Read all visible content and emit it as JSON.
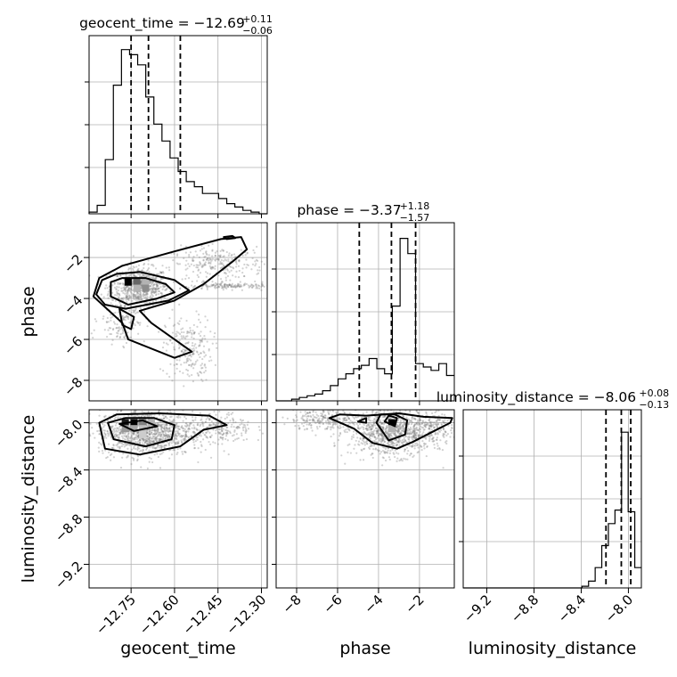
{
  "chart_data": {
    "type": "corner",
    "parameters": [
      "geocent_time",
      "phase",
      "luminosity_distance"
    ],
    "ranges": {
      "geocent_time": [
        -12.895,
        -12.28
      ],
      "phase": [
        -9.0,
        -0.3
      ],
      "luminosity_distance": [
        -9.4,
        -7.89
      ]
    },
    "ticks": {
      "geocent_time": [
        -12.75,
        -12.6,
        -12.45,
        -12.3
      ],
      "phase": [
        -8,
        -6,
        -4,
        -2
      ],
      "luminosity_distance": [
        -9.2,
        -8.8,
        -8.4,
        -8.0
      ]
    },
    "tick_labels": {
      "geocent_time": [
        "−12.75",
        "−12.60",
        "−12.45",
        "−12.30"
      ],
      "phase": [
        "−8",
        "−6",
        "−4",
        "−2"
      ],
      "luminosity_distance": [
        "−9.2",
        "−8.8",
        "−8.4",
        "−8.0"
      ]
    },
    "axis_labels": {
      "geocent_time": "geocent_time",
      "phase": "phase",
      "luminosity_distance": "luminosity_distance"
    },
    "titles": [
      {
        "param": "geocent_time",
        "text": "geocent_time = −12.69",
        "upper": "+0.11",
        "lower": "−0.06"
      },
      {
        "param": "phase",
        "text": "phase = −3.37",
        "upper": "+1.18",
        "lower": "−1.57"
      },
      {
        "param": "luminosity_distance",
        "text": "luminosity_distance = −8.06",
        "upper": "+0.08",
        "lower": "−0.13"
      }
    ],
    "quantiles": {
      "geocent_time": [
        -12.75,
        -12.69,
        -12.58
      ],
      "phase": [
        -4.94,
        -3.37,
        -2.19
      ],
      "luminosity_distance": [
        -8.19,
        -8.06,
        -7.98
      ]
    },
    "histograms": {
      "geocent_time": {
        "edges_range": [
          -12.895,
          -12.28
        ],
        "counts": [
          0.01,
          0.05,
          0.32,
          0.76,
          0.97,
          0.94,
          0.88,
          0.69,
          0.53,
          0.43,
          0.33,
          0.25,
          0.19,
          0.16,
          0.12,
          0.12,
          0.09,
          0.06,
          0.04,
          0.02,
          0.01,
          0.0
        ]
      },
      "phase": {
        "edges_range": [
          -9.0,
          -0.3
        ],
        "counts": [
          0.0,
          0.0,
          0.01,
          0.02,
          0.03,
          0.04,
          0.06,
          0.09,
          0.13,
          0.16,
          0.19,
          0.21,
          0.25,
          0.19,
          0.16,
          0.56,
          0.96,
          0.87,
          0.22,
          0.2,
          0.18,
          0.22,
          0.15
        ]
      },
      "luminosity_distance": {
        "edges_range": [
          -9.4,
          -7.89
        ],
        "counts": [
          0.0,
          0.0,
          0.0,
          0.0,
          0.0,
          0.0,
          0.0,
          0.0,
          0.0,
          0.0,
          0.0,
          0.0,
          0.0,
          0.0,
          0.0,
          0.0,
          0.0,
          0.0,
          0.01,
          0.04,
          0.12,
          0.25,
          0.38,
          0.46,
          0.92,
          0.45,
          0.12
        ]
      }
    },
    "contours_2d": {
      "geocent_time__phase": [
        [
          [
            -12.82,
            -3.2
          ],
          [
            -12.82,
            -3.9
          ],
          [
            -12.76,
            -4.3
          ],
          [
            -12.66,
            -4.0
          ],
          [
            -12.6,
            -3.7
          ],
          [
            -12.63,
            -3.3
          ],
          [
            -12.7,
            -3.0
          ],
          [
            -12.78,
            -3.0
          ]
        ],
        [
          [
            -12.85,
            -3.1
          ],
          [
            -12.87,
            -3.8
          ],
          [
            -12.84,
            -4.3
          ],
          [
            -12.77,
            -4.5
          ],
          [
            -12.62,
            -4.1
          ],
          [
            -12.55,
            -3.6
          ],
          [
            -12.6,
            -3.1
          ],
          [
            -12.72,
            -2.7
          ],
          [
            -12.8,
            -2.8
          ]
        ],
        [
          [
            -12.86,
            -3.0
          ],
          [
            -12.88,
            -3.9
          ],
          [
            -12.78,
            -5.2
          ],
          [
            -12.76,
            -6.0
          ],
          [
            -12.6,
            -6.9
          ],
          [
            -12.54,
            -6.6
          ],
          [
            -12.68,
            -5.2
          ],
          [
            -12.72,
            -4.6
          ],
          [
            -12.6,
            -4.1
          ],
          [
            -12.5,
            -3.3
          ],
          [
            -12.4,
            -2.2
          ],
          [
            -12.35,
            -1.6
          ],
          [
            -12.37,
            -1.0
          ],
          [
            -12.44,
            -1.1
          ],
          [
            -12.6,
            -1.7
          ],
          [
            -12.78,
            -2.4
          ]
        ],
        [
          [
            -12.42,
            -1.1
          ],
          [
            -12.39,
            -1.05
          ],
          [
            -12.4,
            -0.95
          ],
          [
            -12.43,
            -1.0
          ]
        ],
        [
          [
            -12.79,
            -4.5
          ],
          [
            -12.78,
            -5.3
          ],
          [
            -12.75,
            -5.5
          ],
          [
            -12.74,
            -4.9
          ]
        ]
      ],
      "geocent_time__luminosity_distance": [
        [
          [
            -12.79,
            -8.01
          ],
          [
            -12.74,
            -8.07
          ],
          [
            -12.66,
            -8.03
          ],
          [
            -12.71,
            -7.98
          ]
        ],
        [
          [
            -12.83,
            -8.0
          ],
          [
            -12.81,
            -8.14
          ],
          [
            -12.7,
            -8.2
          ],
          [
            -12.61,
            -8.14
          ],
          [
            -12.6,
            -8.02
          ],
          [
            -12.67,
            -7.96
          ],
          [
            -12.77,
            -7.96
          ]
        ],
        [
          [
            -12.86,
            -8.0
          ],
          [
            -12.84,
            -8.22
          ],
          [
            -12.72,
            -8.27
          ],
          [
            -12.58,
            -8.2
          ],
          [
            -12.5,
            -8.06
          ],
          [
            -12.42,
            -8.02
          ],
          [
            -12.48,
            -7.94
          ],
          [
            -12.65,
            -7.92
          ],
          [
            -12.8,
            -7.93
          ]
        ]
      ],
      "phase__luminosity_distance": [
        [
          [
            -3.7,
            -7.99
          ],
          [
            -3.2,
            -8.03
          ],
          [
            -3.1,
            -7.96
          ],
          [
            -3.5,
            -7.94
          ]
        ],
        [
          [
            -5.0,
            -7.99
          ],
          [
            -4.6,
            -8.0
          ],
          [
            -4.6,
            -7.96
          ]
        ],
        [
          [
            -4.1,
            -8.0
          ],
          [
            -3.5,
            -8.15
          ],
          [
            -2.7,
            -8.1
          ],
          [
            -2.6,
            -7.98
          ],
          [
            -3.2,
            -7.93
          ],
          [
            -3.9,
            -7.93
          ]
        ],
        [
          [
            -6.4,
            -7.96
          ],
          [
            -5.2,
            -8.05
          ],
          [
            -4.3,
            -8.17
          ],
          [
            -3.1,
            -8.22
          ],
          [
            -2.3,
            -8.16
          ],
          [
            -1.4,
            -8.08
          ],
          [
            -0.5,
            -8.0
          ],
          [
            -0.4,
            -7.96
          ],
          [
            -1.8,
            -7.95
          ],
          [
            -3.0,
            -7.92
          ],
          [
            -4.6,
            -7.94
          ],
          [
            -5.9,
            -7.93
          ]
        ]
      ]
    },
    "density_2d": {
      "geocent_time__phase": {
        "cells": [
          {
            "x": -12.76,
            "y": -3.2,
            "v": 1.0
          },
          {
            "x": -12.73,
            "y": -3.2,
            "v": 0.6
          },
          {
            "x": -12.7,
            "y": -3.2,
            "v": 0.3
          },
          {
            "x": -12.73,
            "y": -3.5,
            "v": 0.3
          },
          {
            "x": -12.7,
            "y": -3.5,
            "v": 0.45
          }
        ]
      },
      "geocent_time__luminosity_distance": {
        "cells": [
          {
            "x": -12.77,
            "y": -8.0,
            "v": 0.9
          },
          {
            "x": -12.74,
            "y": -8.0,
            "v": 1.0
          },
          {
            "x": -12.71,
            "y": -8.0,
            "v": 0.5
          },
          {
            "x": -12.68,
            "y": -8.0,
            "v": 0.3
          },
          {
            "x": -12.77,
            "y": -8.05,
            "v": 0.4
          },
          {
            "x": -12.74,
            "y": -8.05,
            "v": 0.35
          },
          {
            "x": -12.71,
            "y": -8.05,
            "v": 0.25
          },
          {
            "x": -12.71,
            "y": -8.1,
            "v": 0.2
          }
        ]
      },
      "phase__luminosity_distance": {
        "cells": [
          {
            "x": -3.35,
            "y": -8.0,
            "v": 1.0
          },
          {
            "x": -3.35,
            "y": -8.05,
            "v": 0.3
          }
        ]
      }
    },
    "grid": true,
    "colors": {
      "line": "#000000",
      "grid": "#b0b0b0",
      "points": "#7f7f7f"
    }
  }
}
